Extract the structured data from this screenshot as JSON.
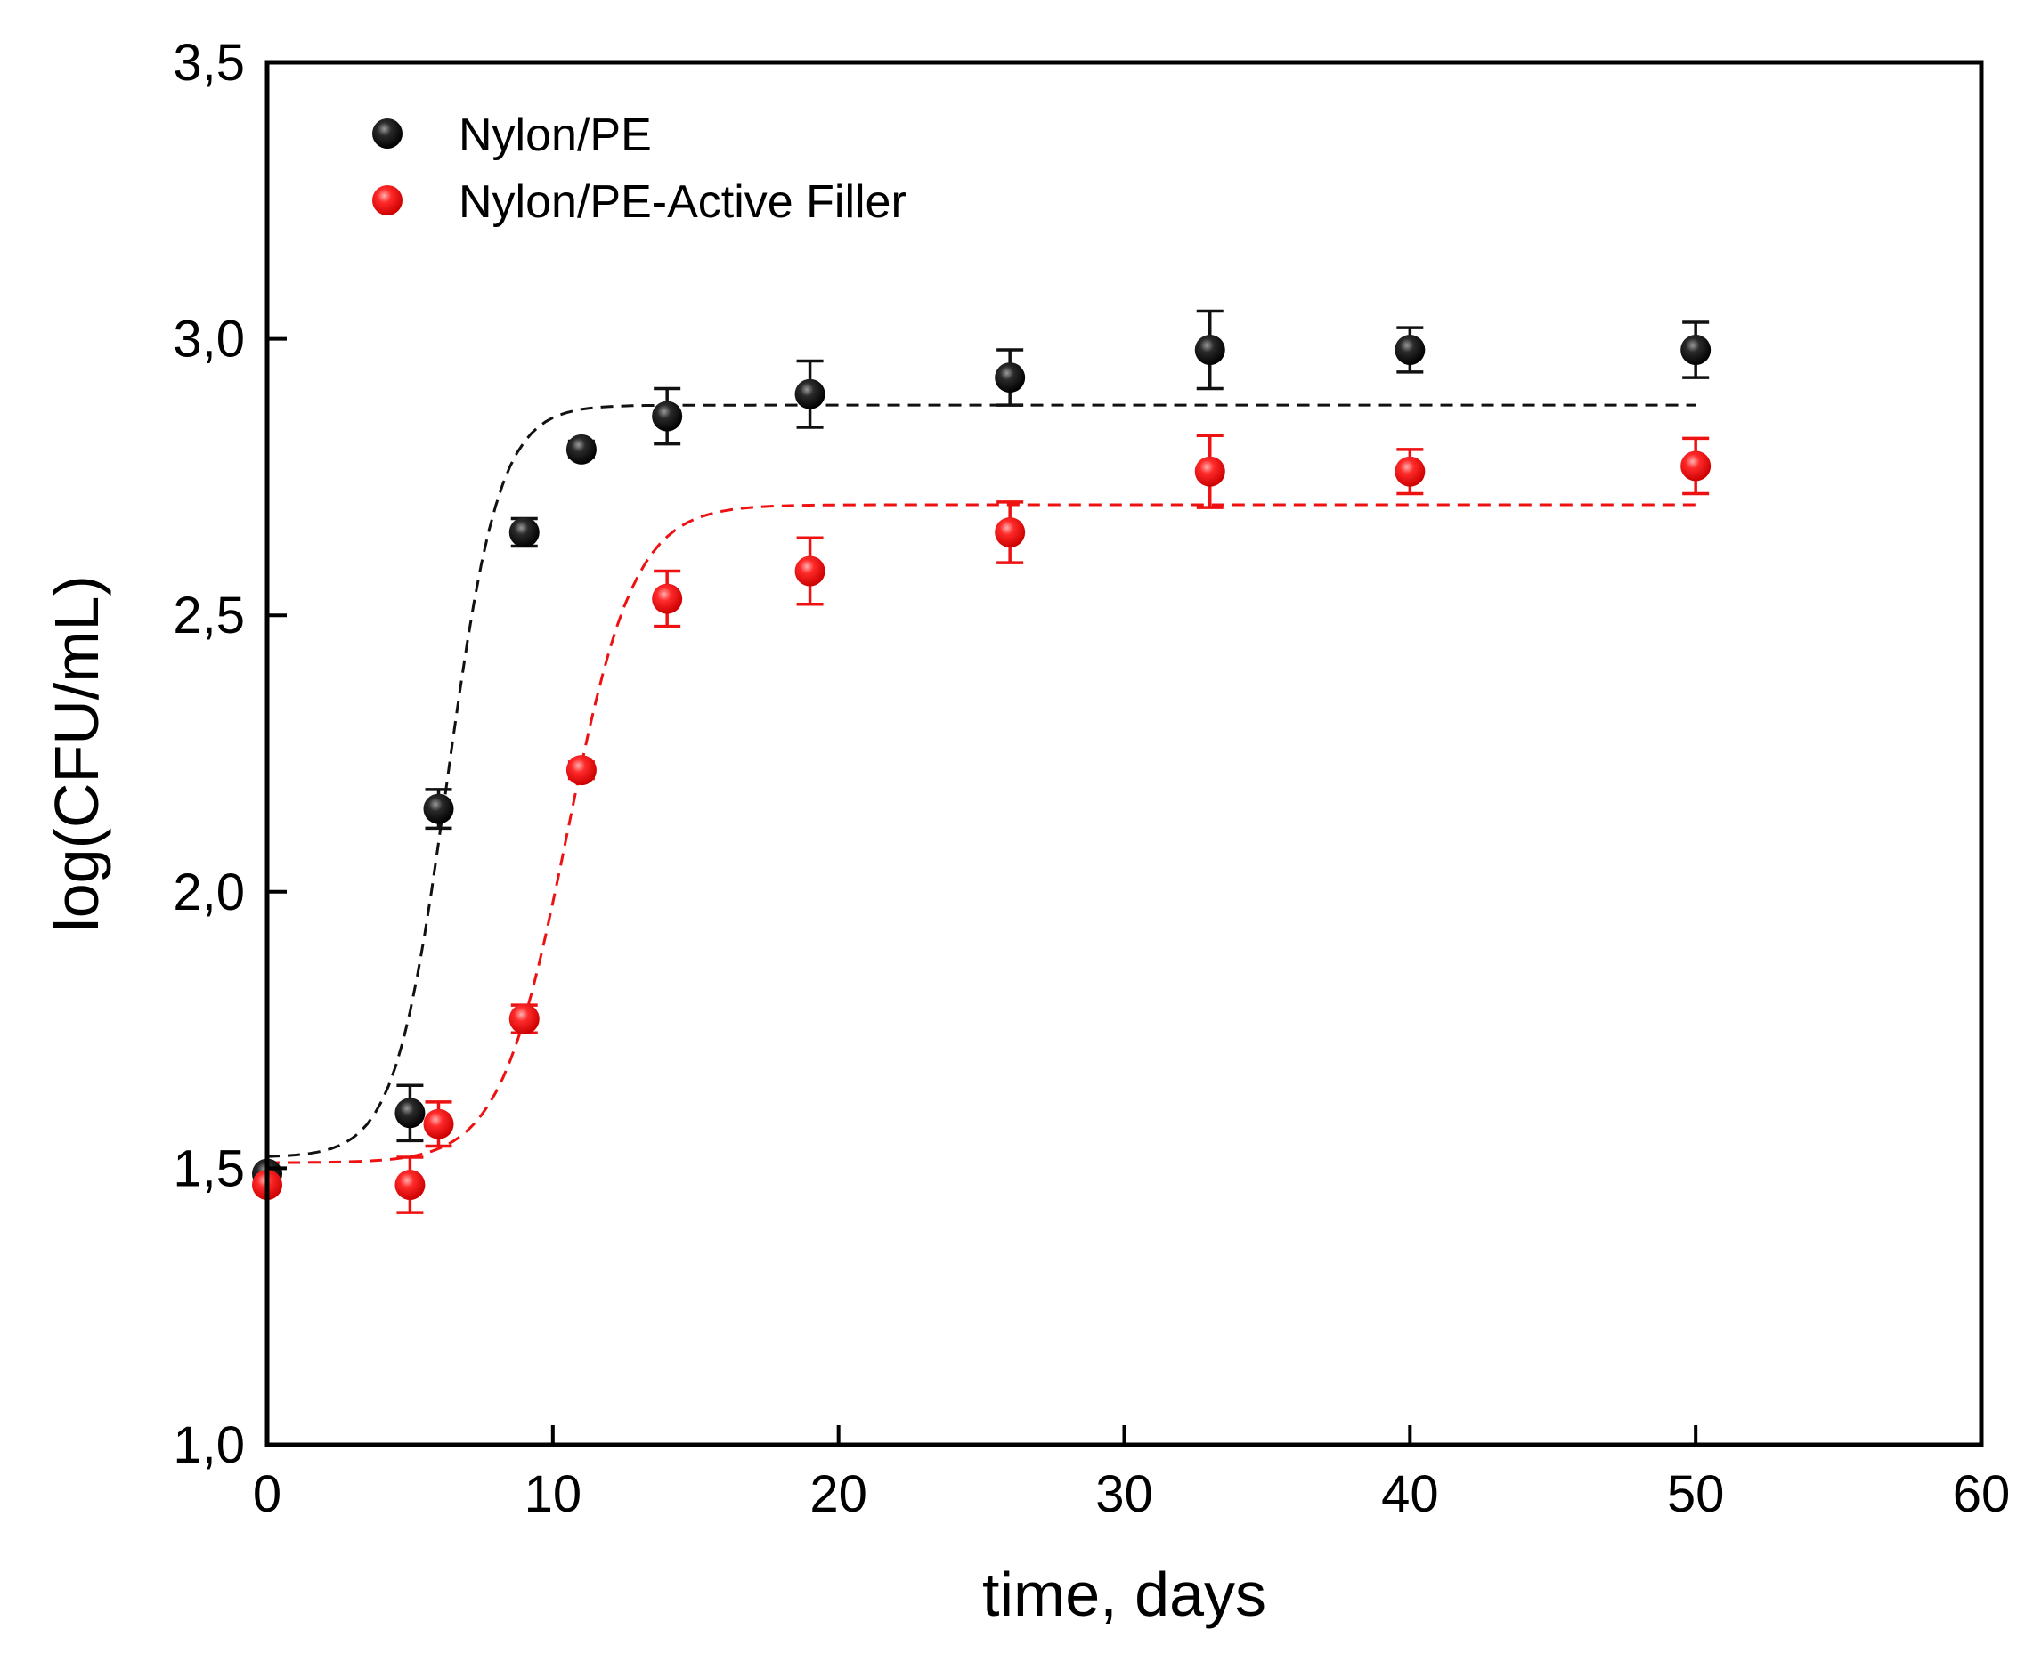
{
  "chart_data": {
    "type": "scatter",
    "title": "",
    "xlabel": "time, days",
    "ylabel": "log(CFU/mL)",
    "xlim": [
      0,
      60
    ],
    "ylim": [
      1.0,
      3.5
    ],
    "xticks": [
      0,
      10,
      20,
      30,
      40,
      50,
      60
    ],
    "xtick_labels": [
      "0",
      "10",
      "20",
      "30",
      "40",
      "50",
      "60"
    ],
    "yticks": [
      1.0,
      1.5,
      2.0,
      2.5,
      3.0,
      3.5
    ],
    "ytick_labels": [
      "1,0",
      "1,5",
      "2,0",
      "2,5",
      "3,0",
      "3,5"
    ],
    "grid": false,
    "legend_position": "top-left",
    "series": [
      {
        "name": "Nylon/PE",
        "color": "#111111",
        "x": [
          0,
          5,
          6,
          9,
          11,
          14,
          19,
          26,
          33,
          40,
          50
        ],
        "y": [
          1.49,
          1.6,
          2.15,
          2.65,
          2.8,
          2.86,
          2.9,
          2.93,
          2.98,
          2.98,
          2.98
        ],
        "err": [
          0.0,
          0.05,
          0.035,
          0.025,
          0.015,
          0.05,
          0.06,
          0.05,
          0.07,
          0.04,
          0.05
        ],
        "fit": {
          "style": "dashed",
          "lower": 1.52,
          "upper": 2.88,
          "midpoint": 6.3,
          "rate": 1.1,
          "x_range": [
            0,
            50
          ]
        }
      },
      {
        "name": "Nylon/PE-Active Filler",
        "color": "#ee1111",
        "x": [
          0,
          5,
          6,
          9,
          11,
          14,
          19,
          26,
          33,
          40,
          50
        ],
        "y": [
          1.47,
          1.47,
          1.58,
          1.77,
          2.22,
          2.53,
          2.58,
          2.65,
          2.76,
          2.76,
          2.77
        ],
        "err": [
          0.0,
          0.05,
          0.04,
          0.025,
          0.015,
          0.05,
          0.06,
          0.055,
          0.065,
          0.04,
          0.05
        ],
        "fit": {
          "style": "dashed",
          "lower": 1.51,
          "upper": 2.7,
          "midpoint": 10.5,
          "rate": 0.85,
          "x_range": [
            0,
            50
          ]
        }
      }
    ]
  }
}
